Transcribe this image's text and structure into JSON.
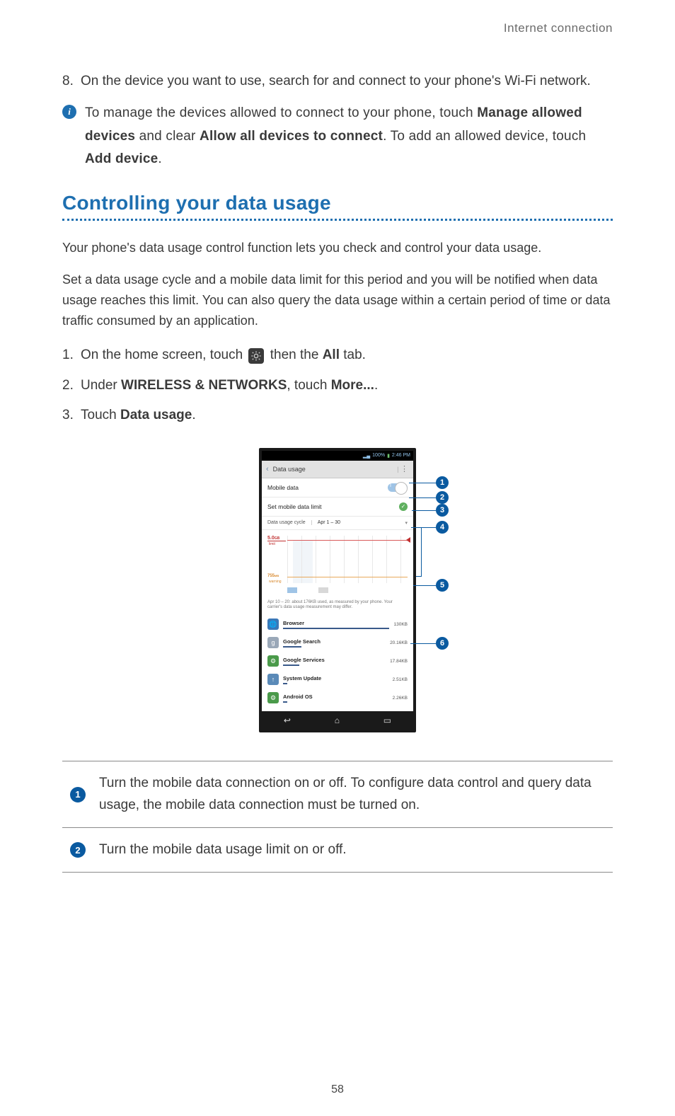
{
  "header_label": "Internet connection",
  "step8": {
    "n": "8.",
    "text": "On the device you want to use, search for and connect to your phone's Wi-Fi network."
  },
  "info": {
    "pre": "To manage the devices allowed to connect to your phone, touch ",
    "b1": "Manage allowed devices",
    "mid1": " and clear ",
    "b2": "Allow all devices to connect",
    "mid2": ". To add an allowed device, touch ",
    "b3": "Add device",
    "post": "."
  },
  "section_title": "Controlling your data usage",
  "para1": "Your phone's data usage control function lets you check and control your data usage.",
  "para2": "Set a data usage cycle and a mobile data limit for this period and you will be notified when data usage reaches this limit. You can also query the data usage within a certain period of time or data traffic consumed by an application.",
  "steps": [
    {
      "n": "1.",
      "pre": "On the home screen, touch ",
      "mid": " then the ",
      "b": "All",
      "post": " tab."
    },
    {
      "n": "2.",
      "pre": "Under ",
      "b1": "WIRELESS & NETWORKS",
      "mid": ", touch ",
      "b2": "More...",
      "post": "."
    },
    {
      "n": "3.",
      "pre": "Touch ",
      "b": "Data usage",
      "post": "."
    }
  ],
  "phone": {
    "status": {
      "signal": "▂▄",
      "pct": "100%",
      "time": "2:46 PM",
      "batt": "▮"
    },
    "title": "Data usage",
    "rows": {
      "mobile_label": "Mobile data",
      "toggle": "I",
      "limit_label": "Set mobile data limit",
      "check": "✓",
      "cycle_label": "Data usage cycle",
      "cycle_val": "Apr 1 – 30",
      "dd": "▾"
    },
    "chart": {
      "lim1": "5.0",
      "lim1_unit": "GB",
      "lim1_sub": "limit",
      "lim2": "755",
      "lim2_unit": "MB",
      "lim2_sub": "warning",
      "grid_color": "#e8e8e8",
      "shade_color": "#e8eef5",
      "line_red": "#d85a5a",
      "line_orange": "#e8a85a"
    },
    "note": "Apr 10 – 20: about 176KB used, as measured by your phone. Your carrier's data usage measurement may differ.",
    "apps": [
      {
        "name": "Browser",
        "val": "130KB",
        "bar": 100,
        "color": "#3a78b8",
        "glyph": "🌐"
      },
      {
        "name": "Google Search",
        "val": "20.16KB",
        "bar": 18,
        "color": "#9aa8b8",
        "glyph": "g"
      },
      {
        "name": "Google Services",
        "val": "17.84KB",
        "bar": 16,
        "color": "#4a9a4a",
        "glyph": "⚙"
      },
      {
        "name": "System Update",
        "val": "2.51KB",
        "bar": 4,
        "color": "#5a8ab8",
        "glyph": "↑"
      },
      {
        "name": "Android OS",
        "val": "2.26KB",
        "bar": 4,
        "color": "#4a9a4a",
        "glyph": "⚙"
      }
    ],
    "nav": {
      "back": "↩",
      "home": "⌂",
      "recent": "▭"
    }
  },
  "callouts": {
    "c1": "1",
    "c2": "2",
    "c3": "3",
    "c4": "4",
    "c5": "5",
    "c6": "6"
  },
  "legend": [
    {
      "n": "1",
      "text": "Turn the mobile data connection on or off. To configure data control and query data usage, the mobile data connection must be turned on."
    },
    {
      "n": "2",
      "text": "Turn the mobile data usage limit on or off."
    }
  ],
  "page_num": "58",
  "colors": {
    "accent": "#1e6fb0",
    "callout": "#0a5aa0"
  }
}
